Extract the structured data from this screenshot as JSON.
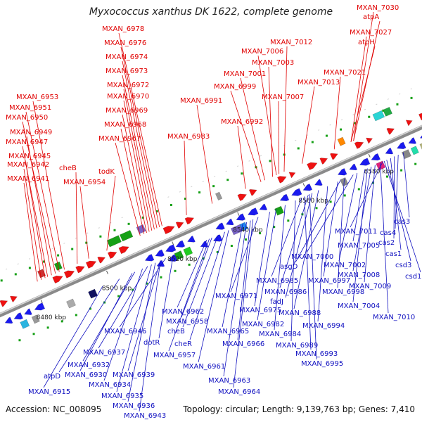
{
  "title": "Myxococcus xanthus DK 1622, complete genome",
  "footer": {
    "accession": "Accession: NC_008095",
    "summary": "Topology: circular; Length: 9,139,763 bp; Genes: 7,410"
  },
  "colors": {
    "top_labels": "#e00000",
    "bottom_labels": "#1010c0",
    "backbone": "#8a8a8a",
    "forward_genes": "#ee1111",
    "reverse_genes": "#1a1aee",
    "rna_genes": "#16a016"
  },
  "tick_labels": [
    "8480 kbp",
    "8500 kbp",
    "8520 kbp",
    "8540 kbp",
    "8560 kbp",
    "8580 kbp"
  ],
  "top_labels": [
    "MXAN_7030",
    "atpA",
    "MXAN_7027",
    "atpH",
    "MXAN_6978",
    "MXAN_6976",
    "MXAN_6974",
    "MXAN_6973",
    "MXAN_6972",
    "MXAN_6970",
    "MXAN_6969",
    "MXAN_6968",
    "MXAN_6967",
    "MXAN_6983",
    "MXAN_7012",
    "MXAN_7006",
    "MXAN_7003",
    "MXAN_7001",
    "MXAN_6999",
    "MXAN_7021",
    "MXAN_7013",
    "MXAN_7007",
    "MXAN_6991",
    "MXAN_6992",
    "MXAN_6953",
    "MXAN_6951",
    "MXAN_6950",
    "MXAN_6949",
    "MXAN_6947",
    "MXAN_6945",
    "MXAN_6942",
    "MXAN_6941",
    "cheB",
    "todK",
    "MXAN_6954"
  ],
  "bottom_labels": [
    "cas3",
    "MXAN_7011",
    "cas4",
    "cas2",
    "cas1",
    "csd3",
    "csd1",
    "MXAN_7005",
    "MXAN_7000",
    "asgD",
    "MXAN_7002",
    "MXAN_6997",
    "MXAN_6998",
    "MXAN_7008",
    "MXAN_7009",
    "MXAN_7004",
    "MXAN_7010",
    "MXAN_6985",
    "MXAN_6986",
    "fadJ",
    "MXAN_6988",
    "MXAN_6994",
    "MXAN_6971",
    "MXAN_6975",
    "MXAN_6982",
    "MXAN_6984",
    "MXAN_6989",
    "MXAN_6993",
    "MXAN_6995",
    "MXAN_6962",
    "MXAN_6958",
    "MXAN_6965",
    "cheB",
    "MXAN_6966",
    "cheR",
    "MXAN_6957",
    "MXAN_6961",
    "MXAN_6963",
    "MXAN_6964",
    "MXAN_6946",
    "dotR",
    "MXAN_6937",
    "MXAN_6932",
    "MXAN_6930",
    "atpD",
    "MXAN_6939",
    "MXAN_6934",
    "MXAN_6935",
    "MXAN_6936",
    "MXAN_6943",
    "MXAN_6915"
  ]
}
